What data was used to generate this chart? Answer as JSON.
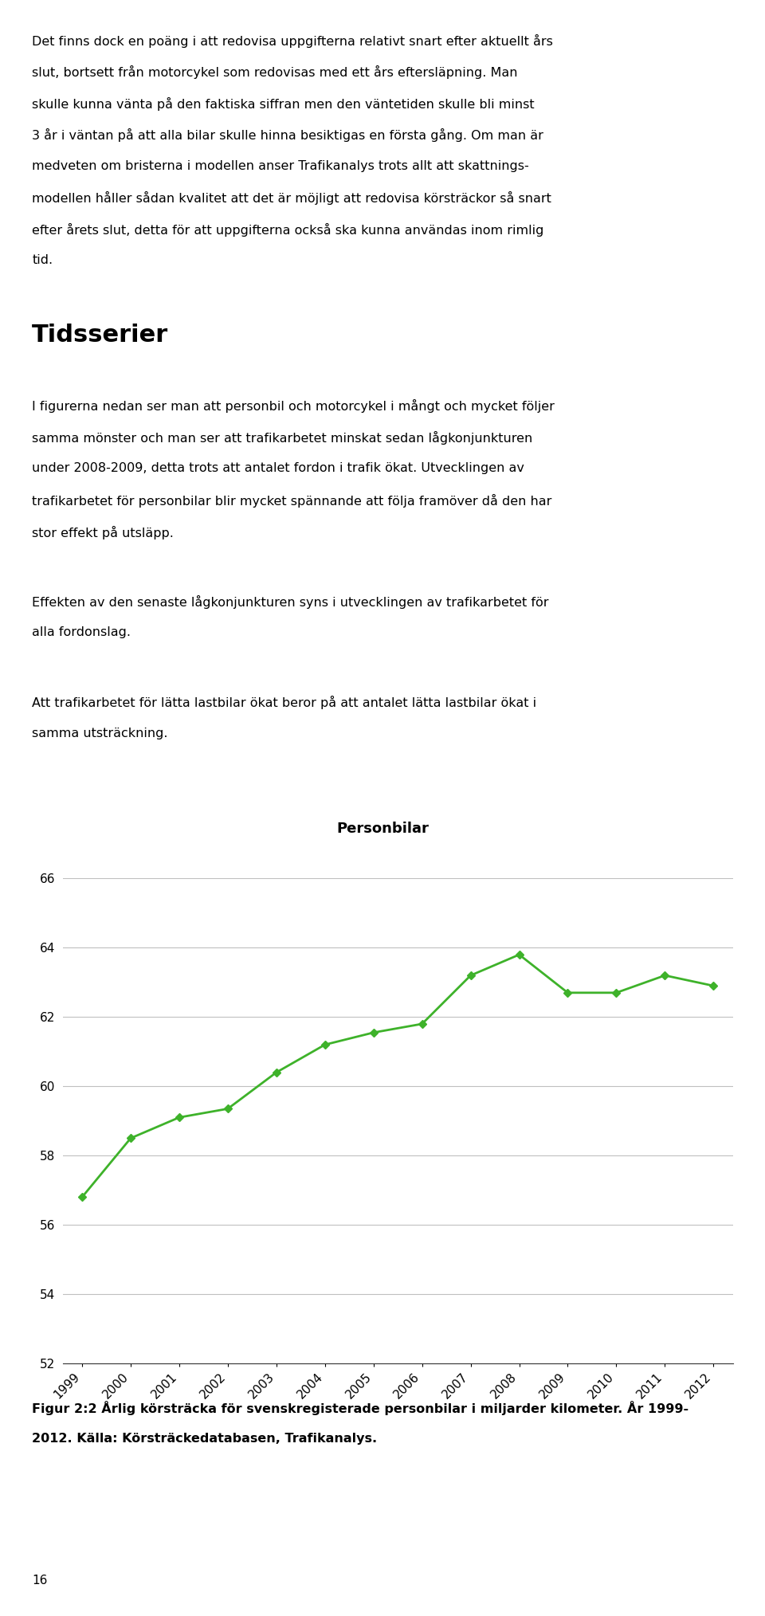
{
  "para1_lines": [
    "Det finns dock en poäng i att redovisa uppgifterna relativt snart efter aktuellt års",
    "slut, bortsett från motorcykel som redovisas med ett års eftersläpning. Man",
    "skulle kunna vänta på den faktiska siffran men den väntetiden skulle bli minst",
    "3 år i väntan på att alla bilar skulle hinna besiktigas en första gång. Om man är",
    "medveten om bristerna i modellen anser Trafikanalys trots allt att skattnings-",
    "modellen håller sådan kvalitet att det är möjligt att redovisa körsträckor så snart",
    "efter årets slut, detta för att uppgifterna också ska kunna användas inom rimlig",
    "tid."
  ],
  "section_title": "Tidsserier",
  "body1_lines": [
    "I figurerna nedan ser man att personbil och motorcykel i mångt och mycket följer",
    "samma mönster och man ser att trafikarbetet minskat sedan lågkonjunkturen",
    "under 2008-2009, detta trots att antalet fordon i trafik ökat. Utvecklingen av",
    "trafikarbetet för personbilar blir mycket spännande att följa framöver då den har",
    "stor effekt på utsläpp."
  ],
  "body2_lines": [
    "Effekten av den senaste lågkonjunkturen syns i utvecklingen av trafikarbetet för",
    "alla fordonslag."
  ],
  "body3_lines": [
    "Att trafikarbetet för lätta lastbilar ökat beror på att antalet lätta lastbilar ökat i",
    "samma utsträckning."
  ],
  "chart_title": "Personbilar",
  "years": [
    1999,
    2000,
    2001,
    2002,
    2003,
    2004,
    2005,
    2006,
    2007,
    2008,
    2009,
    2010,
    2011,
    2012
  ],
  "values": [
    56.8,
    58.5,
    59.1,
    59.35,
    60.4,
    61.2,
    61.55,
    61.8,
    63.2,
    63.8,
    62.7,
    62.7,
    63.2,
    62.9
  ],
  "line_color": "#3eb22a",
  "marker": "D",
  "marker_size": 5,
  "ylim": [
    52,
    66
  ],
  "yticks": [
    52,
    54,
    56,
    58,
    60,
    62,
    64,
    66
  ],
  "grid_color": "#c0c0c0",
  "caption_line1": "Figur 2:2 Årlig körsträcka för svenskregisterade personbilar i miljarder kilometer. År 1999-",
  "caption_line2": "2012. Källa: Körsträckedatabasen, Trafikanalys.",
  "page_number": "16",
  "background_color": "#ffffff",
  "text_color": "#000000",
  "body_fontsize": 11.5,
  "section_title_fontsize": 22,
  "caption_fontsize": 11.5,
  "chart_title_fontsize": 13,
  "page_num_fontsize": 11
}
